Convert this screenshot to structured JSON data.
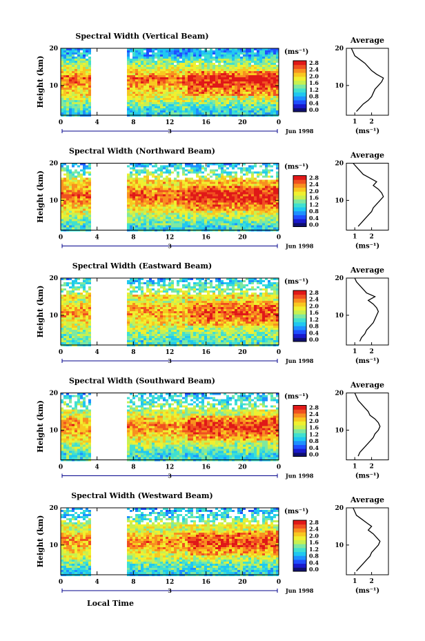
{
  "figure": {
    "xlabel": "Local Time",
    "date_label": "Jun 1998",
    "day_label": "3",
    "ylabel": "Height (km)",
    "unit": "(ms⁻¹)",
    "avg_title": "Average"
  },
  "chart_data": [
    {
      "type": "heatmap",
      "title": "Spectral Width (Vertical Beam)",
      "xlabel": "Local Time",
      "ylabel": "Height (km)",
      "x_ticks": [
        "0",
        "4",
        "8",
        "12",
        "16",
        "20",
        "0"
      ],
      "y_ticks": [
        "10",
        "20"
      ],
      "xlim": [
        0,
        24
      ],
      "ylim": [
        2,
        20
      ],
      "data_gap_hours": [
        3.3,
        7.4
      ],
      "colorbar": {
        "label": "(ms⁻¹)",
        "ticks": [
          "0.0",
          "0.4",
          "0.8",
          "1.2",
          "1.6",
          "2.0",
          "2.4",
          "2.8"
        ]
      },
      "average_profile": {
        "title": "Average",
        "xlabel": "(ms⁻¹)",
        "x_ticks": [
          "1",
          "2"
        ],
        "xlim": [
          0.5,
          3.0
        ],
        "height_km": [
          3,
          4,
          5,
          6,
          7,
          8,
          9,
          10,
          11,
          12,
          13,
          14,
          15,
          16,
          17,
          18,
          19,
          20
        ],
        "width": [
          1.1,
          1.3,
          1.5,
          1.8,
          2.0,
          2.1,
          2.2,
          2.4,
          2.6,
          2.7,
          2.3,
          2.0,
          1.8,
          1.6,
          1.3,
          1.0,
          0.9,
          0.8
        ]
      }
    },
    {
      "type": "heatmap",
      "title": "Spectral Width (Northward Beam)",
      "xlabel": "Local Time",
      "ylabel": "Height (km)",
      "x_ticks": [
        "0",
        "4",
        "8",
        "12",
        "16",
        "20",
        "0"
      ],
      "y_ticks": [
        "10",
        "20"
      ],
      "xlim": [
        0,
        24
      ],
      "ylim": [
        2,
        20
      ],
      "data_gap_hours": [
        3.3,
        7.4
      ],
      "colorbar": {
        "label": "(ms⁻¹)",
        "ticks": [
          "0.0",
          "0.4",
          "0.8",
          "1.2",
          "1.6",
          "2.0",
          "2.4",
          "2.8"
        ]
      },
      "average_profile": {
        "title": "Average",
        "xlabel": "(ms⁻¹)",
        "x_ticks": [
          "1",
          "2"
        ],
        "xlim": [
          0.5,
          3.0
        ],
        "height_km": [
          3,
          4,
          5,
          6,
          7,
          8,
          9,
          10,
          11,
          12,
          13,
          14,
          15,
          16,
          17,
          18,
          19,
          20
        ],
        "width": [
          1.2,
          1.4,
          1.6,
          1.8,
          2.0,
          2.1,
          2.3,
          2.5,
          2.7,
          2.6,
          2.4,
          2.1,
          2.3,
          1.9,
          1.5,
          1.3,
          1.1,
          0.9
        ]
      }
    },
    {
      "type": "heatmap",
      "title": "Spectral Width (Eastward Beam)",
      "xlabel": "Local Time",
      "ylabel": "Height (km)",
      "x_ticks": [
        "0",
        "4",
        "8",
        "12",
        "16",
        "20",
        "0"
      ],
      "y_ticks": [
        "10",
        "20"
      ],
      "xlim": [
        0,
        24
      ],
      "ylim": [
        2,
        20
      ],
      "data_gap_hours": [
        3.3,
        7.4
      ],
      "colorbar": {
        "label": "(ms⁻¹)",
        "ticks": [
          "0.0",
          "0.4",
          "0.8",
          "1.2",
          "1.6",
          "2.0",
          "2.4",
          "2.8"
        ]
      },
      "average_profile": {
        "title": "Average",
        "xlabel": "(ms⁻¹)",
        "x_ticks": [
          "1",
          "2"
        ],
        "xlim": [
          0.5,
          3.0
        ],
        "height_km": [
          3,
          4,
          5,
          6,
          7,
          8,
          9,
          10,
          11,
          12,
          13,
          14,
          15,
          16,
          17,
          18,
          19,
          20
        ],
        "width": [
          1.3,
          1.4,
          1.6,
          1.7,
          1.9,
          2.1,
          2.2,
          2.3,
          2.4,
          2.3,
          2.1,
          1.8,
          2.2,
          1.7,
          1.5,
          1.3,
          1.1,
          1.0
        ]
      }
    },
    {
      "type": "heatmap",
      "title": "Spectral Width (Southward Beam)",
      "xlabel": "Local Time",
      "ylabel": "Height (km)",
      "x_ticks": [
        "0",
        "4",
        "8",
        "12",
        "16",
        "20",
        "0"
      ],
      "y_ticks": [
        "10",
        "20"
      ],
      "xlim": [
        0,
        24
      ],
      "ylim": [
        2,
        20
      ],
      "data_gap_hours": [
        3.3,
        7.4
      ],
      "colorbar": {
        "label": "(ms⁻¹)",
        "ticks": [
          "0.0",
          "0.4",
          "0.8",
          "1.2",
          "1.6",
          "2.0",
          "2.4",
          "2.8"
        ]
      },
      "average_profile": {
        "title": "Average",
        "xlabel": "(ms⁻¹)",
        "x_ticks": [
          "1",
          "2"
        ],
        "xlim": [
          0.5,
          3.0
        ],
        "height_km": [
          3,
          4,
          5,
          6,
          7,
          8,
          9,
          10,
          11,
          12,
          13,
          14,
          15,
          16,
          17,
          18,
          19,
          20
        ],
        "width": [
          1.2,
          1.3,
          1.5,
          1.7,
          1.9,
          2.1,
          2.2,
          2.4,
          2.5,
          2.4,
          2.2,
          1.9,
          1.8,
          1.6,
          1.4,
          1.2,
          1.1,
          1.0
        ]
      }
    },
    {
      "type": "heatmap",
      "title": "Spectral Width (Westward Beam)",
      "xlabel": "Local Time",
      "ylabel": "Height (km)",
      "x_ticks": [
        "0",
        "4",
        "8",
        "12",
        "16",
        "20",
        "0"
      ],
      "y_ticks": [
        "10",
        "20"
      ],
      "xlim": [
        0,
        24
      ],
      "ylim": [
        2,
        20
      ],
      "data_gap_hours": [
        3.3,
        7.4
      ],
      "colorbar": {
        "label": "(ms⁻¹)",
        "ticks": [
          "0.0",
          "0.4",
          "0.8",
          "1.2",
          "1.6",
          "2.0",
          "2.4",
          "2.8"
        ]
      },
      "average_profile": {
        "title": "Average",
        "xlabel": "(ms⁻¹)",
        "x_ticks": [
          "1",
          "2"
        ],
        "xlim": [
          0.5,
          3.0
        ],
        "height_km": [
          3,
          4,
          5,
          6,
          7,
          8,
          9,
          10,
          11,
          12,
          13,
          14,
          15,
          16,
          17,
          18,
          19,
          20
        ],
        "width": [
          1.1,
          1.3,
          1.5,
          1.7,
          1.9,
          2.0,
          2.2,
          2.4,
          2.5,
          2.3,
          2.1,
          1.8,
          2.0,
          1.7,
          1.4,
          1.1,
          1.0,
          0.9
        ]
      }
    }
  ]
}
